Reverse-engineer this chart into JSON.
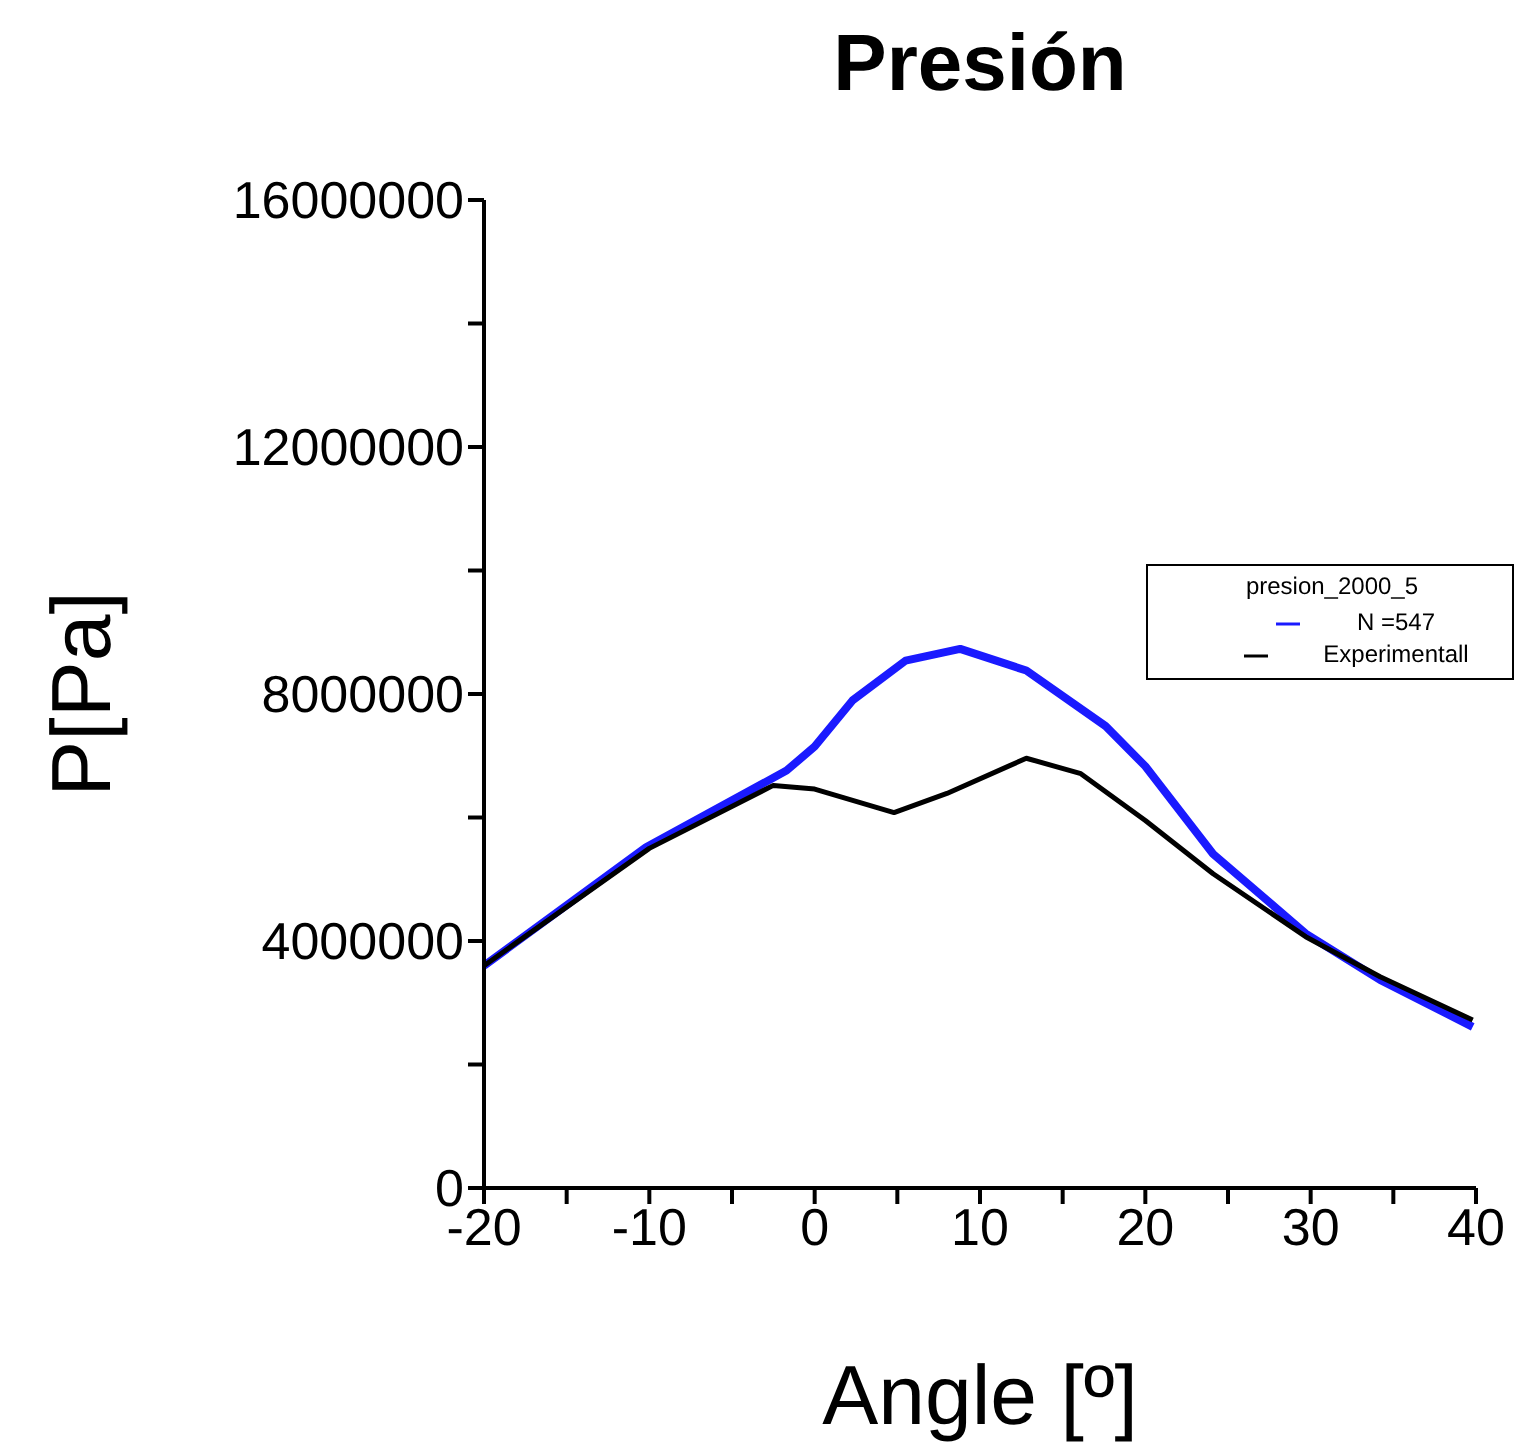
{
  "chart_data": {
    "type": "line",
    "title": "Presión",
    "xlabel": "Angle [º]",
    "ylabel": "P[Pa]",
    "legend_title": "presion_2000_5",
    "legend": "right",
    "xlim": [
      -20,
      40
    ],
    "xticks": [
      -20,
      {
        "value": -15,
        "label": null
      },
      -10,
      {
        "value": -5,
        "label": null
      },
      0,
      {
        "value": 5,
        "label": null
      },
      10,
      {
        "value": 15,
        "label": null
      },
      20,
      {
        "value": 25,
        "label": null
      },
      30,
      {
        "value": 35,
        "label": null
      },
      40
    ],
    "ylim": [
      0,
      16000000
    ],
    "yticks": [
      0,
      {
        "value": 2000000,
        "label": null
      },
      4000000,
      {
        "value": 6000000,
        "label": null
      },
      8000000,
      {
        "value": 10000000,
        "label": null
      },
      12000000,
      {
        "value": 14000000,
        "label": null
      },
      16000000
    ],
    "series": [
      {
        "name": "N =547",
        "color": "#1a1aff",
        "x": [
          -20,
          -10.2,
          -1.7,
          0,
          2.3,
          5.5,
          8.8,
          12.8,
          17.6,
          20,
          24.1,
          29.7,
          34.2,
          39.8
        ],
        "values": [
          3600000,
          5520000,
          6760000,
          7150000,
          7900000,
          8540000,
          8730000,
          8380000,
          7480000,
          6830000,
          5410000,
          4120000,
          3370000,
          2610000
        ]
      },
      {
        "name": "Experimentall",
        "color": "#000000",
        "x": [
          -20,
          -10,
          -2.5,
          0,
          4.8,
          8,
          12.8,
          16.1,
          20,
          24.1,
          29.7,
          34.2,
          39.8
        ],
        "values": [
          3600000,
          5500000,
          6520000,
          6460000,
          6080000,
          6390000,
          6960000,
          6710000,
          5950000,
          5090000,
          4070000,
          3420000,
          2720000
        ]
      }
    ]
  }
}
